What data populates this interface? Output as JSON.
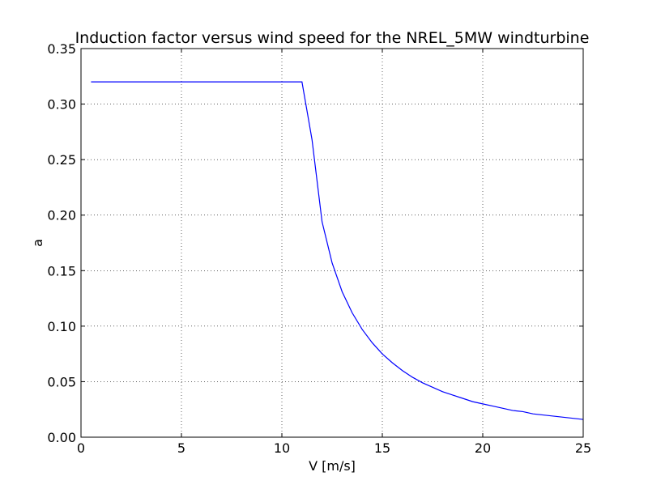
{
  "chart_data": {
    "type": "line",
    "title": "Induction factor versus wind speed for the NREL_5MW windturbine",
    "xlabel": "V [m/s]",
    "ylabel": "a",
    "xlim": [
      0,
      25
    ],
    "ylim": [
      0,
      0.35
    ],
    "xticks": [
      0,
      5,
      10,
      15,
      20,
      25
    ],
    "xtick_labels": [
      "0",
      "5",
      "10",
      "15",
      "20",
      "25"
    ],
    "yticks": [
      0,
      0.05,
      0.1,
      0.15,
      0.2,
      0.25,
      0.3,
      0.35
    ],
    "ytick_labels": [
      "0.00",
      "0.05",
      "0.10",
      "0.15",
      "0.20",
      "0.25",
      "0.30",
      "0.35"
    ],
    "grid": true,
    "legend": "none",
    "series": [
      {
        "color": "#0000ff",
        "x": [
          0.5,
          11.0,
          11.5,
          12.0,
          12.5,
          13.0,
          13.5,
          14.0,
          14.5,
          15.0,
          15.5,
          16.0,
          16.5,
          17.0,
          17.5,
          18.0,
          18.5,
          19.0,
          19.5,
          20.0,
          20.5,
          21.0,
          21.5,
          22.0,
          22.5,
          23.0,
          23.5,
          24.0,
          24.5,
          25.0
        ],
        "y": [
          0.32,
          0.32,
          0.268,
          0.194,
          0.157,
          0.131,
          0.112,
          0.097,
          0.085,
          0.075,
          0.067,
          0.06,
          0.054,
          0.049,
          0.045,
          0.041,
          0.038,
          0.035,
          0.032,
          0.03,
          0.028,
          0.026,
          0.024,
          0.023,
          0.021,
          0.02,
          0.019,
          0.018,
          0.017,
          0.016
        ]
      }
    ]
  }
}
